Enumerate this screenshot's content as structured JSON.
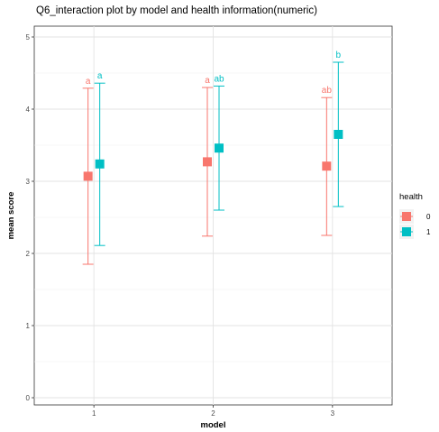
{
  "chart_data": {
    "type": "scatter",
    "title": "Q6_interaction plot by model and health information(numeric)",
    "xlabel": "model",
    "ylabel": "mean score",
    "categories": [
      "1",
      "2",
      "3"
    ],
    "ylim": [
      -0.1,
      5.15
    ],
    "yticks": [
      "0",
      "1",
      "2",
      "3",
      "4",
      "5"
    ],
    "grid": true,
    "legend": {
      "title": "health",
      "position": "right"
    },
    "series": [
      {
        "name": "0",
        "color": "#f8766d",
        "values": [
          3.07,
          3.27,
          3.21
        ],
        "lower": [
          1.85,
          2.24,
          2.25
        ],
        "upper": [
          4.29,
          4.3,
          4.16
        ],
        "letters": [
          "a",
          "a",
          "ab"
        ]
      },
      {
        "name": "1",
        "color": "#00bfc4",
        "values": [
          3.24,
          3.46,
          3.65
        ],
        "lower": [
          2.11,
          2.6,
          2.65
        ],
        "upper": [
          4.36,
          4.32,
          4.65
        ],
        "letters": [
          "a",
          "ab",
          "b"
        ]
      }
    ]
  }
}
